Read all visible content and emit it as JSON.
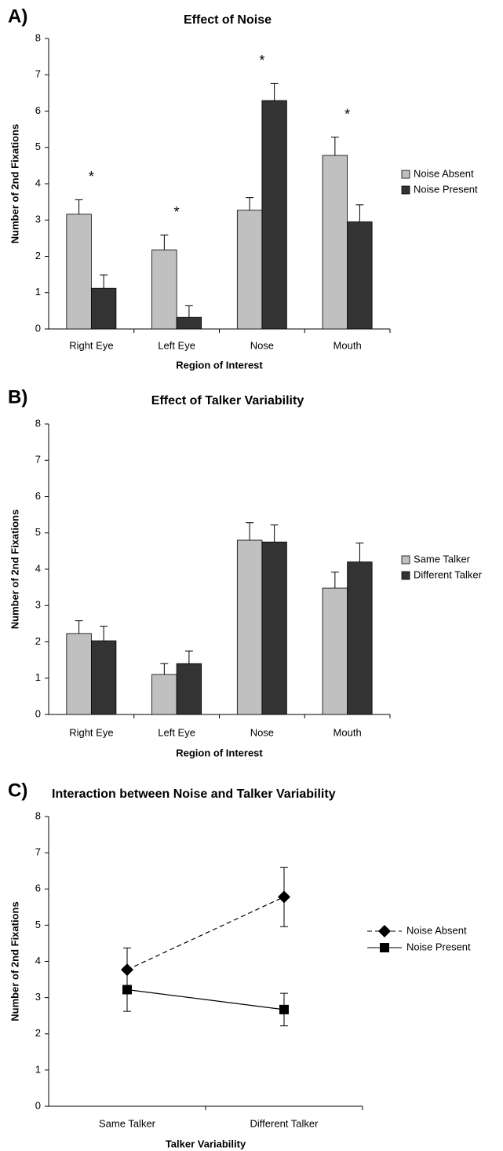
{
  "chart_data": [
    {
      "type": "bar",
      "panel": "A)",
      "title": "Effect of Noise",
      "x_label": "Region of Interest",
      "y_label": "Number of 2nd Fixations",
      "categories": [
        "Right Eye",
        "Left Eye",
        "Nose",
        "Mouth"
      ],
      "series": [
        {
          "name": "Noise Absent",
          "color": "#c0c0c0",
          "values": [
            3.16,
            2.18,
            3.27,
            4.78
          ],
          "errors": [
            0.4,
            0.41,
            0.35,
            0.5
          ]
        },
        {
          "name": "Noise Present",
          "color": "#333333",
          "values": [
            1.12,
            0.32,
            6.29,
            2.95
          ],
          "errors": [
            0.37,
            0.32,
            0.47,
            0.47
          ]
        }
      ],
      "annotations": [
        "*",
        "*",
        "*",
        "*"
      ],
      "ylim": [
        0,
        8
      ],
      "yticks": [
        0,
        1,
        2,
        3,
        4,
        5,
        6,
        7,
        8
      ],
      "legend": "right"
    },
    {
      "type": "bar",
      "panel": "B)",
      "title": "Effect of Talker Variability",
      "x_label": "Region of Interest",
      "y_label": "Number of 2nd Fixations",
      "categories": [
        "Right Eye",
        "Left Eye",
        "Nose",
        "Mouth"
      ],
      "series": [
        {
          "name": "Same Talker",
          "color": "#c0c0c0",
          "values": [
            2.23,
            1.1,
            4.8,
            3.48
          ],
          "errors": [
            0.35,
            0.3,
            0.48,
            0.44
          ]
        },
        {
          "name": "Different Talker",
          "color": "#333333",
          "values": [
            2.03,
            1.4,
            4.75,
            4.2
          ],
          "errors": [
            0.4,
            0.35,
            0.47,
            0.52
          ]
        }
      ],
      "ylim": [
        0,
        8
      ],
      "yticks": [
        0,
        1,
        2,
        3,
        4,
        5,
        6,
        7,
        8
      ],
      "legend": "right"
    },
    {
      "type": "line",
      "panel": "C)",
      "title": "Interaction between Noise and Talker Variability",
      "x_label": "Talker Variability",
      "y_label": "Number of 2nd Fixations",
      "categories": [
        "Same Talker",
        "Different Talker"
      ],
      "series": [
        {
          "name": "Noise Absent",
          "color": "#000000",
          "dashed": true,
          "marker": "diamond",
          "values": [
            3.77,
            5.78
          ],
          "errors": [
            0.6,
            0.82
          ]
        },
        {
          "name": "Noise Present",
          "color": "#000000",
          "dashed": false,
          "marker": "square",
          "values": [
            3.22,
            2.67
          ],
          "errors": [
            0.6,
            0.45
          ]
        }
      ],
      "ylim": [
        0,
        8
      ],
      "yticks": [
        0,
        1,
        2,
        3,
        4,
        5,
        6,
        7,
        8
      ],
      "legend": "right"
    }
  ]
}
